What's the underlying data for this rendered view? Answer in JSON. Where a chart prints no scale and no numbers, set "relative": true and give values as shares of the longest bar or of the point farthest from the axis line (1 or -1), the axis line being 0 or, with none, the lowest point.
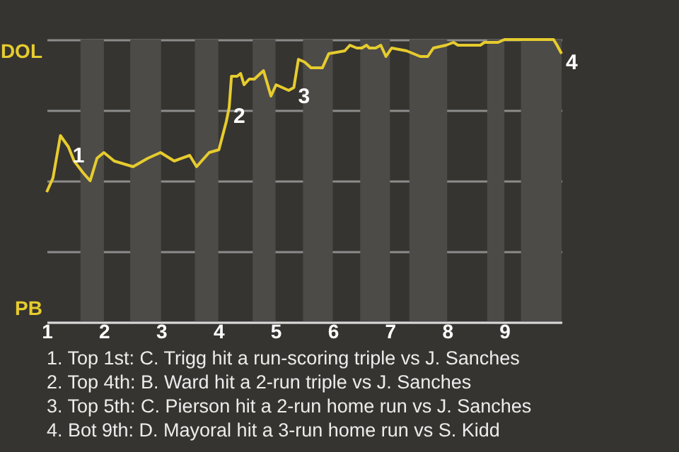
{
  "chart_data": {
    "type": "line",
    "relative": true,
    "line_style": "solid",
    "grid": "y",
    "x": [
      1,
      1.11,
      1.24,
      1.38,
      1.48,
      1.63,
      1.76,
      1.88,
      2,
      2.18,
      2.51,
      2.77,
      2.99,
      3.23,
      3.5,
      3.62,
      3.84,
      4.01,
      4.14,
      4.19,
      4.23,
      4.33,
      4.39,
      4.45,
      4.54,
      4.63,
      4.79,
      4.92,
      5.01,
      5.23,
      5.32,
      5.4,
      5.51,
      5.62,
      5.82,
      5.93,
      6.21,
      6.3,
      6.42,
      6.51,
      6.59,
      6.64,
      6.75,
      6.84,
      6.93,
      7.03,
      7.29,
      7.53,
      7.66,
      7.76,
      7.98,
      8.11,
      8.19,
      8.28,
      8.58,
      8.65,
      8.77,
      8.89,
      9,
      9.86,
      9.92,
      10
    ],
    "series": [
      {
        "color": "#e6cc2e",
        "values": [
          0.46,
          0.51,
          0.66,
          0.62,
          0.57,
          0.53,
          0.5,
          0.58,
          0.6,
          0.57,
          0.55,
          0.58,
          0.6,
          0.57,
          0.59,
          0.55,
          0.6,
          0.61,
          0.71,
          0.76,
          0.87,
          0.87,
          0.88,
          0.84,
          0.86,
          0.86,
          0.89,
          0.8,
          0.84,
          0.82,
          0.83,
          0.93,
          0.92,
          0.9,
          0.9,
          0.95,
          0.96,
          0.98,
          0.97,
          0.97,
          0.98,
          0.97,
          0.97,
          0.98,
          0.94,
          0.97,
          0.96,
          0.94,
          0.94,
          0.97,
          0.98,
          0.99,
          0.98,
          0.98,
          0.98,
          0.99,
          0.99,
          0.99,
          1,
          1,
          0.98,
          0.95
        ]
      }
    ],
    "xlim": [
      1,
      10
    ],
    "xticks": [
      1,
      2,
      3,
      4,
      5,
      6,
      7,
      8,
      9
    ],
    "bands": [
      {
        "axis": "x",
        "from": 1.59,
        "to": 2,
        "color": "#4d4b48"
      },
      {
        "axis": "x",
        "from": 2.46,
        "to": 3,
        "color": "#4d4b48"
      },
      {
        "axis": "x",
        "from": 3.59,
        "to": 4,
        "color": "#4d4b48"
      },
      {
        "axis": "x",
        "from": 4.6,
        "to": 5,
        "color": "#4d4b48"
      },
      {
        "axis": "x",
        "from": 5.48,
        "to": 6,
        "color": "#4d4b48"
      },
      {
        "axis": "x",
        "from": 6.48,
        "to": 7,
        "color": "#4d4b48"
      },
      {
        "axis": "x",
        "from": 7.34,
        "to": 8,
        "color": "#4d4b48"
      },
      {
        "axis": "x",
        "from": 8.7,
        "to": 9,
        "color": "#4d4b48"
      },
      {
        "axis": "x",
        "from": 9.29,
        "to": 10,
        "color": "#4d4b48"
      }
    ],
    "annotations": [
      "DOL",
      "PB",
      {
        "text": "1",
        "x": 1.38,
        "y": 0.62
      },
      {
        "text": "2",
        "x": 4.19,
        "y": 0.76
      },
      {
        "text": "3",
        "x": 5.32,
        "y": 0.83
      },
      {
        "text": "4",
        "x": 10,
        "y": 0.95
      },
      "1. Top 1st: C. Trigg hit a run-scoring triple vs J. Sanches",
      "2. Top 4th: B. Ward hit a 2-run triple vs J. Sanches",
      "3. Top 5th: C. Pierson hit a 2-run home run vs J. Sanches",
      "4. Bot 9th: D. Mayoral hit a 3-run home run vs S. Kidd"
    ]
  }
}
